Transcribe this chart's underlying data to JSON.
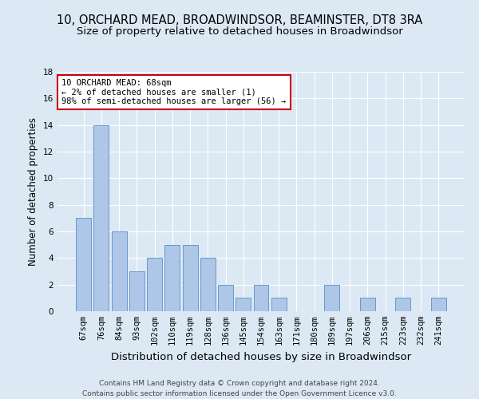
{
  "title": "10, ORCHARD MEAD, BROADWINDSOR, BEAMINSTER, DT8 3RA",
  "subtitle": "Size of property relative to detached houses in Broadwindsor",
  "xlabel": "Distribution of detached houses by size in Broadwindsor",
  "ylabel": "Number of detached properties",
  "footer_line1": "Contains HM Land Registry data © Crown copyright and database right 2024.",
  "footer_line2": "Contains public sector information licensed under the Open Government Licence v3.0.",
  "categories": [
    "67sqm",
    "76sqm",
    "84sqm",
    "93sqm",
    "102sqm",
    "110sqm",
    "119sqm",
    "128sqm",
    "136sqm",
    "145sqm",
    "154sqm",
    "163sqm",
    "171sqm",
    "180sqm",
    "189sqm",
    "197sqm",
    "206sqm",
    "215sqm",
    "223sqm",
    "232sqm",
    "241sqm"
  ],
  "values": [
    7,
    14,
    6,
    3,
    4,
    5,
    5,
    4,
    2,
    1,
    2,
    1,
    0,
    0,
    2,
    0,
    1,
    0,
    1,
    0,
    1
  ],
  "bar_color": "#aec6e8",
  "bar_edge_color": "#5a8fc2",
  "annotation_text": "10 ORCHARD MEAD: 68sqm\n← 2% of detached houses are smaller (1)\n98% of semi-detached houses are larger (56) →",
  "annotation_box_color": "#ffffff",
  "annotation_box_edge_color": "#cc0000",
  "ylim": [
    0,
    18
  ],
  "yticks": [
    0,
    2,
    4,
    6,
    8,
    10,
    12,
    14,
    16,
    18
  ],
  "background_color": "#dce9f5",
  "grid_color": "#ffffff",
  "title_fontsize": 10.5,
  "subtitle_fontsize": 9.5,
  "xlabel_fontsize": 9.5,
  "ylabel_fontsize": 8.5,
  "tick_fontsize": 7.5,
  "footer_fontsize": 6.5,
  "annotation_fontsize": 7.5
}
